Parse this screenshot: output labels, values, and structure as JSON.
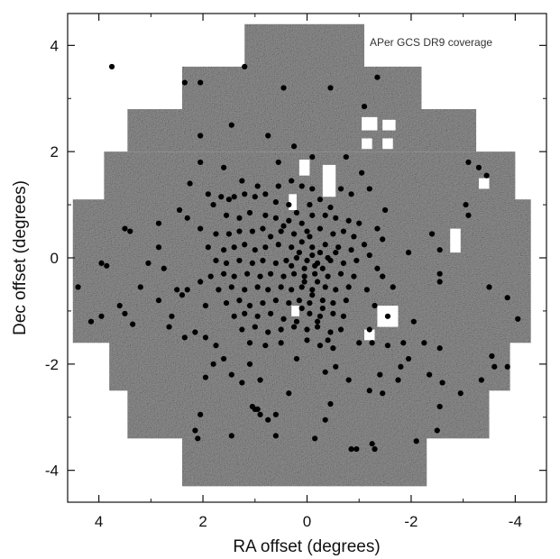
{
  "chart_data": {
    "type": "scatter",
    "title": "",
    "xlabel": "RA offset (degrees)",
    "ylabel": "Dec offset (degrees)",
    "xlim": [
      4.6,
      -4.6
    ],
    "ylim": [
      -4.6,
      4.6
    ],
    "x_ticks": [
      4,
      2,
      0,
      -2,
      -4
    ],
    "x_tick_labels": [
      "4",
      "2",
      "0",
      "-2",
      "-4"
    ],
    "y_ticks": [
      4,
      2,
      0,
      -2,
      -4
    ],
    "y_tick_labels": [
      "4",
      "2",
      "0",
      "-2",
      "-4"
    ],
    "annotation": "APer GCS DR9 coverage",
    "grid": false,
    "coverage_color": "#8f8f8f",
    "point_color": "#000000",
    "coverage_tiles_ra_dec": [
      {
        "ra": [
          1.2,
          -1.1
        ],
        "dec": [
          3.5,
          4.4
        ]
      },
      {
        "ra": [
          2.4,
          -2.2
        ],
        "dec": [
          2.7,
          3.6
        ]
      },
      {
        "ra": [
          3.45,
          -3.25
        ],
        "dec": [
          2.0,
          2.8
        ]
      },
      {
        "ra": [
          3.9,
          -4.0
        ],
        "dec": [
          1.0,
          2.0
        ]
      },
      {
        "ra": [
          4.5,
          -4.3
        ],
        "dec": [
          -1.6,
          1.1
        ]
      },
      {
        "ra": [
          3.8,
          -3.9
        ],
        "dec": [
          -2.5,
          -1.55
        ]
      },
      {
        "ra": [
          3.45,
          -3.5
        ],
        "dec": [
          -3.4,
          -2.45
        ]
      },
      {
        "ra": [
          2.4,
          -2.3
        ],
        "dec": [
          -4.3,
          -3.35
        ]
      }
    ],
    "coverage_holes_ra_dec": [
      {
        "ra": [
          0.15,
          -0.05
        ],
        "dec": [
          1.55,
          1.85
        ]
      },
      {
        "ra": [
          -0.3,
          -0.55
        ],
        "dec": [
          1.15,
          1.75
        ]
      },
      {
        "ra": [
          0.35,
          0.2
        ],
        "dec": [
          0.9,
          1.2
        ]
      },
      {
        "ra": [
          -1.05,
          -1.35
        ],
        "dec": [
          2.4,
          2.65
        ]
      },
      {
        "ra": [
          -1.45,
          -1.7
        ],
        "dec": [
          2.4,
          2.6
        ]
      },
      {
        "ra": [
          -1.05,
          -1.25
        ],
        "dec": [
          2.05,
          2.25
        ]
      },
      {
        "ra": [
          -1.45,
          -1.65
        ],
        "dec": [
          2.05,
          2.25
        ]
      },
      {
        "ra": [
          -2.75,
          -2.95
        ],
        "dec": [
          0.1,
          0.55
        ]
      },
      {
        "ra": [
          -3.3,
          -3.5
        ],
        "dec": [
          1.3,
          1.5
        ]
      },
      {
        "ra": [
          -1.35,
          -1.75
        ],
        "dec": [
          -1.3,
          -0.9
        ]
      },
      {
        "ra": [
          -1.1,
          -1.3
        ],
        "dec": [
          -1.55,
          -1.35
        ]
      },
      {
        "ra": [
          0.3,
          0.15
        ],
        "dec": [
          -1.1,
          -0.9
        ]
      }
    ],
    "points": [
      {
        "x": 3.75,
        "y": 3.6
      },
      {
        "x": 2.35,
        "y": 3.3
      },
      {
        "x": 2.05,
        "y": 3.3
      },
      {
        "x": 1.2,
        "y": 3.6
      },
      {
        "x": 0.45,
        "y": 3.2
      },
      {
        "x": -0.45,
        "y": 3.2
      },
      {
        "x": -1.35,
        "y": 3.4
      },
      {
        "x": -1.1,
        "y": 2.85
      },
      {
        "x": 2.05,
        "y": 2.3
      },
      {
        "x": 1.45,
        "y": 2.5
      },
      {
        "x": 0.75,
        "y": 2.3
      },
      {
        "x": 0.25,
        "y": 2.1
      },
      {
        "x": 2.05,
        "y": 1.8
      },
      {
        "x": 1.6,
        "y": 1.7
      },
      {
        "x": 0.55,
        "y": 1.8
      },
      {
        "x": -0.1,
        "y": 1.9
      },
      {
        "x": -0.75,
        "y": 1.9
      },
      {
        "x": -1.05,
        "y": 1.6
      },
      {
        "x": -1.2,
        "y": 1.3
      },
      {
        "x": -3.1,
        "y": 1.8
      },
      {
        "x": -3.3,
        "y": 1.7
      },
      {
        "x": -3.45,
        "y": 1.55
      },
      {
        "x": 2.25,
        "y": 1.4
      },
      {
        "x": -1.5,
        "y": 0.9
      },
      {
        "x": -1.45,
        "y": 0.35
      },
      {
        "x": -1.95,
        "y": 0.1
      },
      {
        "x": -2.4,
        "y": 0.45
      },
      {
        "x": -2.55,
        "y": 0.15
      },
      {
        "x": -3.05,
        "y": 1.0
      },
      {
        "x": -3.1,
        "y": 0.8
      },
      {
        "x": 3.5,
        "y": 0.55
      },
      {
        "x": 3.4,
        "y": 0.5
      },
      {
        "x": 2.85,
        "y": 0.65
      },
      {
        "x": 2.3,
        "y": 0.75
      },
      {
        "x": 2.05,
        "y": 0.55
      },
      {
        "x": 2.85,
        "y": 0.2
      },
      {
        "x": 2.75,
        "y": -0.2
      },
      {
        "x": 3.05,
        "y": -0.1
      },
      {
        "x": 3.85,
        "y": -0.15
      },
      {
        "x": 3.95,
        "y": -0.1
      },
      {
        "x": 4.4,
        "y": -0.55
      },
      {
        "x": 3.2,
        "y": -0.55
      },
      {
        "x": 2.85,
        "y": -0.8
      },
      {
        "x": 2.5,
        "y": -0.6
      },
      {
        "x": 2.3,
        "y": -0.6
      },
      {
        "x": 2.4,
        "y": -0.7
      },
      {
        "x": 2.05,
        "y": -0.45
      },
      {
        "x": 1.95,
        "y": -0.9
      },
      {
        "x": 3.6,
        "y": -0.9
      },
      {
        "x": 3.5,
        "y": -1.05
      },
      {
        "x": 3.95,
        "y": -1.1
      },
      {
        "x": 4.15,
        "y": -1.2
      },
      {
        "x": 2.15,
        "y": -1.4
      },
      {
        "x": 1.95,
        "y": -1.5
      },
      {
        "x": 1.75,
        "y": -1.65
      },
      {
        "x": 2.35,
        "y": -1.5
      },
      {
        "x": 1.8,
        "y": -2.0
      },
      {
        "x": 1.95,
        "y": -2.25
      },
      {
        "x": 1.45,
        "y": -2.2
      },
      {
        "x": 1.1,
        "y": -2.0
      },
      {
        "x": 0.9,
        "y": -2.3
      },
      {
        "x": 0.2,
        "y": -1.9
      },
      {
        "x": 0.35,
        "y": -2.55
      },
      {
        "x": 0.6,
        "y": -2.95
      },
      {
        "x": 0.95,
        "y": -2.85
      },
      {
        "x": 1.0,
        "y": -2.85
      },
      {
        "x": 1.05,
        "y": -2.8
      },
      {
        "x": 0.9,
        "y": -2.95
      },
      {
        "x": 0.75,
        "y": -3.05
      },
      {
        "x": 2.05,
        "y": -2.95
      },
      {
        "x": 2.15,
        "y": -3.25
      },
      {
        "x": 2.1,
        "y": -3.4
      },
      {
        "x": 1.45,
        "y": -3.35
      },
      {
        "x": 0.6,
        "y": -3.35
      },
      {
        "x": -0.15,
        "y": -3.4
      },
      {
        "x": -0.35,
        "y": -3.05
      },
      {
        "x": -0.45,
        "y": -2.75
      },
      {
        "x": -0.8,
        "y": -2.3
      },
      {
        "x": -1.2,
        "y": -2.5
      },
      {
        "x": -1.45,
        "y": -2.55
      },
      {
        "x": -1.4,
        "y": -2.2
      },
      {
        "x": -1.75,
        "y": -2.3
      },
      {
        "x": -0.85,
        "y": -3.6
      },
      {
        "x": -0.95,
        "y": -3.6
      },
      {
        "x": -1.25,
        "y": -3.5
      },
      {
        "x": -1.3,
        "y": -3.6
      },
      {
        "x": -2.1,
        "y": -3.45
      },
      {
        "x": -2.5,
        "y": -3.25
      },
      {
        "x": -2.55,
        "y": -2.8
      },
      {
        "x": -2.95,
        "y": -2.55
      },
      {
        "x": -3.35,
        "y": -2.3
      },
      {
        "x": -3.55,
        "y": -1.85
      },
      {
        "x": -3.6,
        "y": -2.05
      },
      {
        "x": -3.85,
        "y": -2.05
      },
      {
        "x": -4.05,
        "y": -1.15
      },
      {
        "x": -3.85,
        "y": -0.75
      },
      {
        "x": -3.5,
        "y": -0.55
      },
      {
        "x": -2.55,
        "y": -0.3
      },
      {
        "x": -2.55,
        "y": -0.45
      },
      {
        "x": -1.65,
        "y": -0.55
      },
      {
        "x": -1.45,
        "y": -0.35
      },
      {
        "x": -1.15,
        "y": -0.6
      },
      {
        "x": -2.05,
        "y": -1.2
      },
      {
        "x": -1.85,
        "y": -1.6
      },
      {
        "x": -1.55,
        "y": -1.65
      },
      {
        "x": -1.25,
        "y": -1.6
      },
      {
        "x": -1.0,
        "y": -1.6
      },
      {
        "x": -2.25,
        "y": -1.6
      },
      {
        "x": -2.55,
        "y": -1.7
      },
      {
        "x": -1.8,
        "y": -2.05
      },
      {
        "x": -1.95,
        "y": -1.9
      },
      {
        "x": -1.2,
        "y": -1.35
      },
      {
        "x": 1.65,
        "y": 1.15
      },
      {
        "x": 1.5,
        "y": 1.1
      },
      {
        "x": 1.4,
        "y": 1.15
      },
      {
        "x": 1.2,
        "y": 1.2
      },
      {
        "x": 1.0,
        "y": 1.15
      },
      {
        "x": 0.8,
        "y": 1.2
      },
      {
        "x": 0.55,
        "y": 1.35
      },
      {
        "x": 0.3,
        "y": 1.45
      },
      {
        "x": 0.1,
        "y": 1.35
      },
      {
        "x": -0.1,
        "y": 1.3
      },
      {
        "x": 0.6,
        "y": 1.05
      },
      {
        "x": 0.35,
        "y": 1.0
      },
      {
        "x": 1.8,
        "y": 1.0
      },
      {
        "x": 1.55,
        "y": 0.8
      },
      {
        "x": 1.3,
        "y": 0.75
      },
      {
        "x": 1.1,
        "y": 0.85
      },
      {
        "x": 0.8,
        "y": 0.8
      },
      {
        "x": 0.6,
        "y": 0.75
      },
      {
        "x": 0.35,
        "y": 0.7
      },
      {
        "x": -0.1,
        "y": 0.8
      },
      {
        "x": -0.35,
        "y": 0.8
      },
      {
        "x": -0.55,
        "y": 0.75
      },
      {
        "x": -0.8,
        "y": 0.7
      },
      {
        "x": -1.0,
        "y": 0.65
      },
      {
        "x": 1.75,
        "y": 0.45
      },
      {
        "x": 1.5,
        "y": 0.45
      },
      {
        "x": 1.3,
        "y": 0.5
      },
      {
        "x": 1.05,
        "y": 0.5
      },
      {
        "x": 0.85,
        "y": 0.55
      },
      {
        "x": 0.7,
        "y": 0.4
      },
      {
        "x": 0.5,
        "y": 0.5
      },
      {
        "x": 0.25,
        "y": 0.45
      },
      {
        "x": 0.0,
        "y": 0.5
      },
      {
        "x": -0.25,
        "y": 0.55
      },
      {
        "x": -0.5,
        "y": 0.45
      },
      {
        "x": -0.7,
        "y": 0.5
      },
      {
        "x": -0.9,
        "y": 0.4
      },
      {
        "x": 1.9,
        "y": 0.2
      },
      {
        "x": 1.6,
        "y": 0.15
      },
      {
        "x": 1.4,
        "y": 0.2
      },
      {
        "x": 1.2,
        "y": 0.25
      },
      {
        "x": 1.0,
        "y": 0.15
      },
      {
        "x": 0.8,
        "y": 0.2
      },
      {
        "x": 0.55,
        "y": 0.25
      },
      {
        "x": 0.3,
        "y": 0.2
      },
      {
        "x": 0.1,
        "y": 0.3
      },
      {
        "x": -0.1,
        "y": 0.2
      },
      {
        "x": -0.35,
        "y": 0.25
      },
      {
        "x": -0.6,
        "y": 0.2
      },
      {
        "x": -0.85,
        "y": 0.15
      },
      {
        "x": -1.1,
        "y": 0.25
      },
      {
        "x": 1.75,
        "y": -0.05
      },
      {
        "x": 1.55,
        "y": -0.1
      },
      {
        "x": 1.3,
        "y": -0.05
      },
      {
        "x": 1.05,
        "y": -0.1
      },
      {
        "x": 0.85,
        "y": -0.05
      },
      {
        "x": 0.6,
        "y": -0.1
      },
      {
        "x": 0.4,
        "y": -0.05
      },
      {
        "x": 0.2,
        "y": 0.0
      },
      {
        "x": 0.0,
        "y": -0.05
      },
      {
        "x": -0.2,
        "y": -0.1
      },
      {
        "x": -0.45,
        "y": -0.05
      },
      {
        "x": -0.7,
        "y": -0.1
      },
      {
        "x": -0.95,
        "y": -0.05
      },
      {
        "x": 1.85,
        "y": -0.35
      },
      {
        "x": 1.6,
        "y": -0.3
      },
      {
        "x": 1.4,
        "y": -0.35
      },
      {
        "x": 1.15,
        "y": -0.3
      },
      {
        "x": 0.9,
        "y": -0.35
      },
      {
        "x": 0.7,
        "y": -0.3
      },
      {
        "x": 0.45,
        "y": -0.35
      },
      {
        "x": 0.25,
        "y": -0.3
      },
      {
        "x": 0.05,
        "y": -0.35
      },
      {
        "x": -0.15,
        "y": -0.3
      },
      {
        "x": -0.4,
        "y": -0.35
      },
      {
        "x": -0.65,
        "y": -0.3
      },
      {
        "x": -0.9,
        "y": -0.35
      },
      {
        "x": 1.7,
        "y": -0.6
      },
      {
        "x": 1.45,
        "y": -0.55
      },
      {
        "x": 1.2,
        "y": -0.6
      },
      {
        "x": 0.95,
        "y": -0.55
      },
      {
        "x": 0.75,
        "y": -0.6
      },
      {
        "x": 0.5,
        "y": -0.55
      },
      {
        "x": 0.3,
        "y": -0.6
      },
      {
        "x": 0.1,
        "y": -0.55
      },
      {
        "x": -0.1,
        "y": -0.6
      },
      {
        "x": -0.35,
        "y": -0.55
      },
      {
        "x": -0.55,
        "y": -0.6
      },
      {
        "x": -0.8,
        "y": -0.55
      },
      {
        "x": 1.55,
        "y": -0.85
      },
      {
        "x": 1.3,
        "y": -0.8
      },
      {
        "x": 1.1,
        "y": -0.9
      },
      {
        "x": 0.85,
        "y": -0.85
      },
      {
        "x": 0.6,
        "y": -0.8
      },
      {
        "x": 0.35,
        "y": -0.85
      },
      {
        "x": 0.15,
        "y": -0.8
      },
      {
        "x": -0.05,
        "y": -0.85
      },
      {
        "x": -0.3,
        "y": -0.8
      },
      {
        "x": -0.5,
        "y": -0.85
      },
      {
        "x": -0.75,
        "y": -0.8
      },
      {
        "x": 1.4,
        "y": -1.1
      },
      {
        "x": 1.2,
        "y": -1.05
      },
      {
        "x": 0.95,
        "y": -1.1
      },
      {
        "x": 0.7,
        "y": -1.05
      },
      {
        "x": 0.45,
        "y": -1.15
      },
      {
        "x": -0.05,
        "y": -1.05
      },
      {
        "x": -0.25,
        "y": -1.1
      },
      {
        "x": -0.5,
        "y": -1.05
      },
      {
        "x": -0.7,
        "y": -1.1
      },
      {
        "x": 1.25,
        "y": -1.35
      },
      {
        "x": 1.0,
        "y": -1.3
      },
      {
        "x": 0.75,
        "y": -1.4
      },
      {
        "x": 0.5,
        "y": -1.35
      },
      {
        "x": 0.25,
        "y": -1.3
      },
      {
        "x": 0.0,
        "y": -1.35
      },
      {
        "x": -0.2,
        "y": -1.3
      },
      {
        "x": -0.45,
        "y": -1.4
      },
      {
        "x": -0.65,
        "y": -1.35
      },
      {
        "x": 1.1,
        "y": -1.6
      },
      {
        "x": 0.8,
        "y": -1.65
      },
      {
        "x": 0.5,
        "y": -1.6
      },
      {
        "x": -0.25,
        "y": -1.65
      },
      {
        "x": -0.5,
        "y": -1.7
      },
      {
        "x": 0.0,
        "y": -1.55
      },
      {
        "x": -0.1,
        "y": 0.05
      },
      {
        "x": -0.15,
        "y": -0.15
      },
      {
        "x": 0.05,
        "y": -0.2
      },
      {
        "x": -0.25,
        "y": 0.1
      },
      {
        "x": 0.15,
        "y": 0.1
      },
      {
        "x": -0.3,
        "y": -0.2
      },
      {
        "x": -0.05,
        "y": 0.4
      },
      {
        "x": 0.05,
        "y": -0.45
      },
      {
        "x": -0.2,
        "y": -0.45
      },
      {
        "x": -0.4,
        "y": 0.0
      },
      {
        "x": 0.3,
        "y": -0.15
      },
      {
        "x": -0.55,
        "y": 0.1
      },
      {
        "x": -0.1,
        "y": -0.7
      },
      {
        "x": 0.1,
        "y": -0.95
      },
      {
        "x": -0.3,
        "y": -0.95
      },
      {
        "x": -0.2,
        "y": -1.2
      },
      {
        "x": 0.2,
        "y": -1.2
      },
      {
        "x": -0.4,
        "y": -1.55
      },
      {
        "x": 0.1,
        "y": 0.65
      },
      {
        "x": -0.05,
        "y": 1.0
      },
      {
        "x": 0.2,
        "y": 0.85
      },
      {
        "x": -0.25,
        "y": 1.1
      },
      {
        "x": 0.45,
        "y": 0.6
      },
      {
        "x": -0.45,
        "y": 0.95
      },
      {
        "x": -0.65,
        "y": 1.3
      },
      {
        "x": -0.85,
        "y": 1.2
      },
      {
        "x": 0.95,
        "y": 1.35
      },
      {
        "x": 1.25,
        "y": 1.45
      },
      {
        "x": 1.9,
        "y": 1.2
      },
      {
        "x": 2.45,
        "y": 0.9
      },
      {
        "x": -1.35,
        "y": 0.55
      },
      {
        "x": -1.2,
        "y": 0.05
      },
      {
        "x": -1.35,
        "y": -0.2
      },
      {
        "x": -1.3,
        "y": -0.9
      },
      {
        "x": -1.55,
        "y": -1.1
      },
      {
        "x": 2.6,
        "y": -1.1
      },
      {
        "x": 2.65,
        "y": -1.3
      },
      {
        "x": 3.35,
        "y": -1.25
      },
      {
        "x": 1.6,
        "y": -1.9
      },
      {
        "x": 1.25,
        "y": -2.35
      },
      {
        "x": -0.35,
        "y": -2.15
      },
      {
        "x": -0.55,
        "y": -2.05
      },
      {
        "x": -2.35,
        "y": -2.2
      },
      {
        "x": -2.6,
        "y": -2.35
      }
    ]
  }
}
